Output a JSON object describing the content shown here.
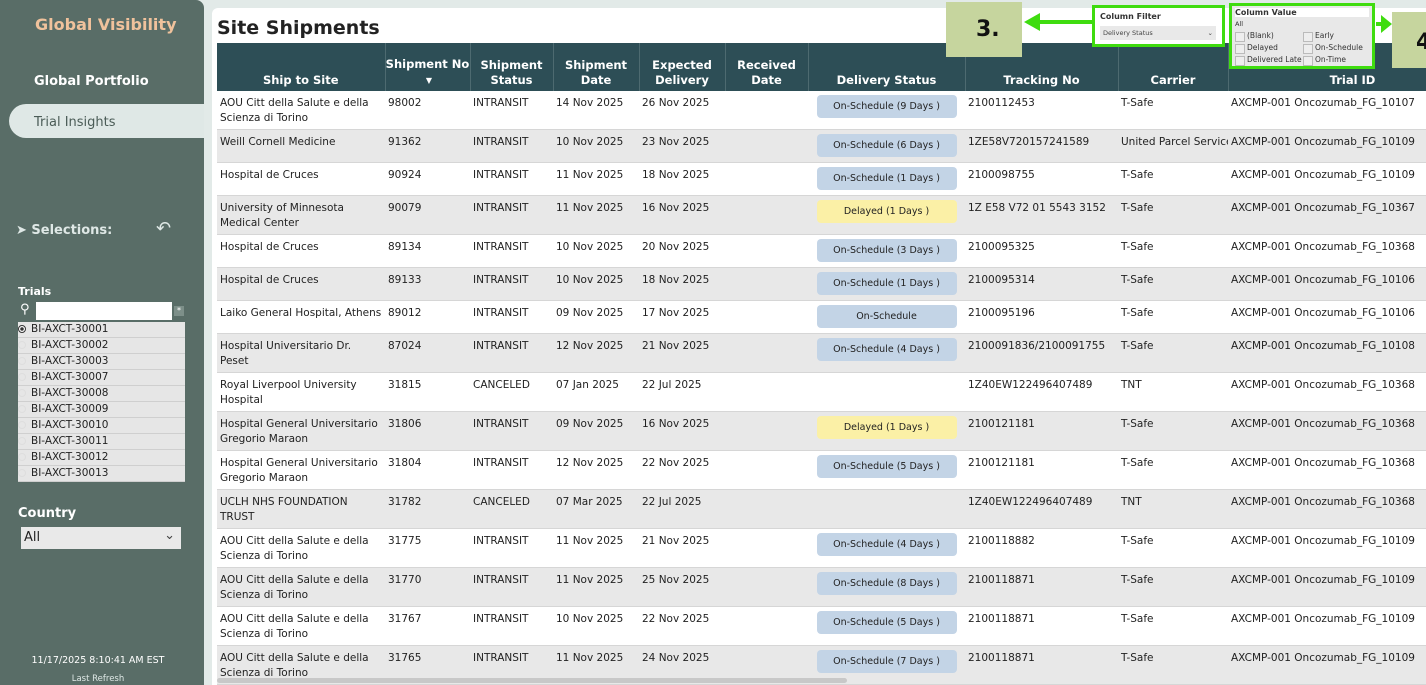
{
  "sidebar": {
    "brand": "Global Visibility",
    "nav": [
      "Global Portfolio",
      "Trial Insights"
    ],
    "selections": "Selections:",
    "trials_label": "Trials",
    "trials": [
      "BI-AXCT-30001",
      "BI-AXCT-30002",
      "BI-AXCT-30003",
      "BI-AXCT-30007",
      "BI-AXCT-30008",
      "BI-AXCT-30009",
      "BI-AXCT-30010",
      "BI-AXCT-30011",
      "BI-AXCT-30012",
      "BI-AXCT-30013"
    ],
    "selected_trial": "BI-AXCT-30001",
    "country_label": "Country",
    "country_value": "All",
    "timestamp": "11/17/2025 8:10:41 AM EST",
    "last_refresh": "Last Refresh"
  },
  "main": {
    "title": "Site Shipments",
    "columns": [
      "Ship to Site",
      "Shipment No",
      "Shipment Status",
      "Shipment Date",
      "Expected Delivery",
      "Received Date",
      "Delivery Status",
      "Tracking No",
      "Carrier",
      "Trial ID"
    ],
    "rows": [
      [
        "AOU Citt della Salute e della Scienza di Torino",
        "98002",
        "INTRANSIT",
        "14 Nov 2025",
        "26 Nov 2025",
        "",
        "On-Schedule (9 Days )",
        "2100112453",
        "T-Safe",
        "AXCMP-001 Oncozumab_FG_10107"
      ],
      [
        "Weill Cornell Medicine",
        "91362",
        "INTRANSIT",
        "10 Nov 2025",
        "23 Nov 2025",
        "",
        "On-Schedule (6 Days )",
        "1ZE58V720157241589",
        "United Parcel Service",
        "AXCMP-001 Oncozumab_FG_10109"
      ],
      [
        "Hospital de Cruces",
        "90924",
        "INTRANSIT",
        "11 Nov 2025",
        "18 Nov 2025",
        "",
        "On-Schedule (1 Days )",
        "2100098755",
        "T-Safe",
        "AXCMP-001 Oncozumab_FG_10109"
      ],
      [
        "University of Minnesota Medical Center",
        "90079",
        "INTRANSIT",
        "11 Nov 2025",
        "16 Nov 2025",
        "",
        "Delayed (1 Days )",
        "1Z E58 V72 01 5543 3152",
        "T-Safe",
        "AXCMP-001 Oncozumab_FG_10367"
      ],
      [
        "Hospital de Cruces",
        "89134",
        "INTRANSIT",
        "10 Nov 2025",
        "20 Nov 2025",
        "",
        "On-Schedule (3 Days )",
        "2100095325",
        "T-Safe",
        "AXCMP-001 Oncozumab_FG_10368"
      ],
      [
        "Hospital de Cruces",
        "89133",
        "INTRANSIT",
        "10 Nov 2025",
        "18 Nov 2025",
        "",
        "On-Schedule (1 Days )",
        "2100095314",
        "T-Safe",
        "AXCMP-001 Oncozumab_FG_10106"
      ],
      [
        "Laiko General Hospital, Athens",
        "89012",
        "INTRANSIT",
        "09 Nov 2025",
        "17 Nov 2025",
        "",
        "On-Schedule",
        "2100095196",
        "T-Safe",
        "AXCMP-001 Oncozumab_FG_10106"
      ],
      [
        "Hospital Universitario Dr. Peset",
        "87024",
        "INTRANSIT",
        "12 Nov 2025",
        "21 Nov 2025",
        "",
        "On-Schedule (4 Days )",
        "2100091836/2100091755",
        "T-Safe",
        "AXCMP-001 Oncozumab_FG_10108"
      ],
      [
        "Royal Liverpool University Hospital",
        "31815",
        "CANCELED",
        "07 Jan 2025",
        "22 Jul 2025",
        "",
        "",
        "1Z40EW122496407489",
        "TNT",
        "AXCMP-001 Oncozumab_FG_10368"
      ],
      [
        "Hospital General Universitario Gregorio Maraon",
        "31806",
        "INTRANSIT",
        "09 Nov 2025",
        "16 Nov 2025",
        "",
        "Delayed (1 Days )",
        "2100121181",
        "T-Safe",
        "AXCMP-001 Oncozumab_FG_10368"
      ],
      [
        "Hospital General Universitario Gregorio Maraon",
        "31804",
        "INTRANSIT",
        "12 Nov 2025",
        "22 Nov 2025",
        "",
        "On-Schedule (5 Days )",
        "2100121181",
        "T-Safe",
        "AXCMP-001 Oncozumab_FG_10368"
      ],
      [
        "UCLH NHS FOUNDATION TRUST",
        "31782",
        "CANCELED",
        "07 Mar 2025",
        "22 Jul 2025",
        "",
        "",
        "1Z40EW122496407489",
        "TNT",
        "AXCMP-001 Oncozumab_FG_10368"
      ],
      [
        "AOU Citt della Salute e della Scienza di Torino",
        "31775",
        "INTRANSIT",
        "11 Nov 2025",
        "21 Nov 2025",
        "",
        "On-Schedule (4 Days )",
        "2100118882",
        "T-Safe",
        "AXCMP-001 Oncozumab_FG_10109"
      ],
      [
        "AOU Citt della Salute e della Scienza di Torino",
        "31770",
        "INTRANSIT",
        "11 Nov 2025",
        "25 Nov 2025",
        "",
        "On-Schedule (8 Days )",
        "2100118871",
        "T-Safe",
        "AXCMP-001 Oncozumab_FG_10109"
      ],
      [
        "AOU Citt della Salute e della Scienza di Torino",
        "31767",
        "INTRANSIT",
        "10 Nov 2025",
        "22 Nov 2025",
        "",
        "On-Schedule (5 Days )",
        "2100118871",
        "T-Safe",
        "AXCMP-001 Oncozumab_FG_10109"
      ],
      [
        "AOU Citt della Salute e della Scienza di Torino",
        "31765",
        "INTRANSIT",
        "11 Nov 2025",
        "24 Nov 2025",
        "",
        "On-Schedule (7 Days )",
        "2100118871",
        "T-Safe",
        "AXCMP-001 Oncozumab_FG_10109"
      ]
    ]
  },
  "filters": {
    "column_filter_label": "Column Filter",
    "column_filter_value": "Delivery Status",
    "column_value_label": "Column Value",
    "column_value_selected": "All",
    "options": [
      "(Blank)",
      "Delayed",
      "Delivered Late",
      "Early",
      "On-Schedule",
      "On-Time"
    ]
  },
  "annotations": {
    "step3": "3.",
    "step4": "4"
  },
  "colors": {
    "sidebar": "#596d67",
    "header": "#2d4e56",
    "on_schedule": "#c3d4e6",
    "delayed": "#fbf0a6",
    "highlight": "#3fdc0f",
    "brand": "#f0c29c"
  }
}
